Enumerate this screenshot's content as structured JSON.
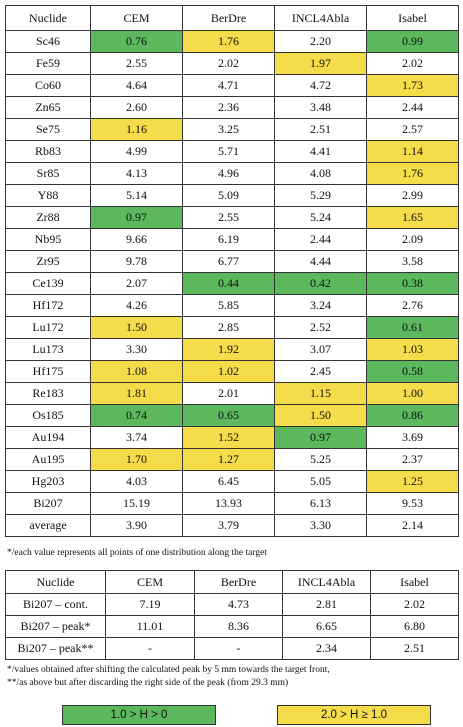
{
  "main_table": {
    "headers": [
      "Nuclide",
      "CEM",
      "BerDre",
      "INCL4Abla",
      "Isabel"
    ],
    "rows": [
      {
        "nuclide": "Sc46",
        "values": [
          "0.76",
          "1.76",
          "2.20",
          "0.99"
        ],
        "colors": [
          "g",
          "y",
          "",
          "g"
        ]
      },
      {
        "nuclide": "Fe59",
        "values": [
          "2.55",
          "2.02",
          "1.97",
          "2.02"
        ],
        "colors": [
          "",
          "",
          "y",
          ""
        ]
      },
      {
        "nuclide": "Co60",
        "values": [
          "4.64",
          "4.71",
          "4.72",
          "1.73"
        ],
        "colors": [
          "",
          "",
          "",
          "y"
        ]
      },
      {
        "nuclide": "Zn65",
        "values": [
          "2.60",
          "2.36",
          "3.48",
          "2.44"
        ],
        "colors": [
          "",
          "",
          "",
          ""
        ]
      },
      {
        "nuclide": "Se75",
        "values": [
          "1.16",
          "3.25",
          "2.51",
          "2.57"
        ],
        "colors": [
          "y",
          "",
          "",
          ""
        ]
      },
      {
        "nuclide": "Rb83",
        "values": [
          "4.99",
          "5.71",
          "4.41",
          "1.14"
        ],
        "colors": [
          "",
          "",
          "",
          "y"
        ]
      },
      {
        "nuclide": "Sr85",
        "values": [
          "4.13",
          "4.96",
          "4.08",
          "1.76"
        ],
        "colors": [
          "",
          "",
          "",
          "y"
        ]
      },
      {
        "nuclide": "Y88",
        "values": [
          "5.14",
          "5.09",
          "5.29",
          "2.99"
        ],
        "colors": [
          "",
          "",
          "",
          ""
        ]
      },
      {
        "nuclide": "Zr88",
        "values": [
          "0.97",
          "2.55",
          "5.24",
          "1.65"
        ],
        "colors": [
          "g",
          "",
          "",
          "y"
        ]
      },
      {
        "nuclide": "Nb95",
        "values": [
          "9.66",
          "6.19",
          "2.44",
          "2.09"
        ],
        "colors": [
          "",
          "",
          "",
          ""
        ]
      },
      {
        "nuclide": "Zr95",
        "values": [
          "9.78",
          "6.77",
          "4.44",
          "3.58"
        ],
        "colors": [
          "",
          "",
          "",
          ""
        ]
      },
      {
        "nuclide": "Ce139",
        "values": [
          "2.07",
          "0.44",
          "0.42",
          "0.38"
        ],
        "colors": [
          "",
          "g",
          "g",
          "g"
        ]
      },
      {
        "nuclide": "Hf172",
        "values": [
          "4.26",
          "5.85",
          "3.24",
          "2.76"
        ],
        "colors": [
          "",
          "",
          "",
          ""
        ]
      },
      {
        "nuclide": "Lu172",
        "values": [
          "1.50",
          "2.85",
          "2.52",
          "0.61"
        ],
        "colors": [
          "y",
          "",
          "",
          "g"
        ]
      },
      {
        "nuclide": "Lu173",
        "values": [
          "3.30",
          "1.92",
          "3.07",
          "1.03"
        ],
        "colors": [
          "",
          "y",
          "",
          "y"
        ]
      },
      {
        "nuclide": "Hf175",
        "values": [
          "1.08",
          "1.02",
          "2.45",
          "0.58"
        ],
        "colors": [
          "y",
          "y",
          "",
          "g"
        ]
      },
      {
        "nuclide": "Re183",
        "values": [
          "1.81",
          "2.01",
          "1.15",
          "1.00"
        ],
        "colors": [
          "y",
          "",
          "y",
          "y"
        ]
      },
      {
        "nuclide": "Os185",
        "values": [
          "0.74",
          "0.65",
          "1.50",
          "0.86"
        ],
        "colors": [
          "g",
          "g",
          "y",
          "g"
        ]
      },
      {
        "nuclide": "Au194",
        "values": [
          "3.74",
          "1.52",
          "0.97",
          "3.69"
        ],
        "colors": [
          "",
          "y",
          "g",
          ""
        ]
      },
      {
        "nuclide": "Au195",
        "values": [
          "1.70",
          "1.27",
          "5.25",
          "2.37"
        ],
        "colors": [
          "y",
          "y",
          "",
          ""
        ]
      },
      {
        "nuclide": "Hg203",
        "values": [
          "4.03",
          "6.45",
          "5.05",
          "1.25"
        ],
        "colors": [
          "",
          "",
          "",
          "y"
        ]
      },
      {
        "nuclide": "Bi207",
        "values": [
          "15.19",
          "13.93",
          "6.13",
          "9.53"
        ],
        "colors": [
          "",
          "",
          "",
          ""
        ]
      },
      {
        "nuclide": "average",
        "values": [
          "3.90",
          "3.79",
          "3.30",
          "2.14"
        ],
        "colors": [
          "",
          "",
          "",
          ""
        ]
      }
    ]
  },
  "note1": "*/each value represents all points of one distribution along the target",
  "sub_table": {
    "headers": [
      "Nuclide",
      "CEM",
      "BerDre",
      "INCL4Abla",
      "Isabel"
    ],
    "rows": [
      {
        "nuclide": "Bi207 – cont.",
        "values": [
          "7.19",
          "4.73",
          "2.81",
          "2.02"
        ]
      },
      {
        "nuclide": "Bi207 – peak*",
        "values": [
          "11.01",
          "8.36",
          "6.65",
          "6.80"
        ]
      },
      {
        "nuclide": "Bi207 – peak**",
        "values": [
          "-",
          "-",
          "2.34",
          "2.51"
        ]
      }
    ]
  },
  "notes2": [
    "*/values obtained after shifting the calculated peak by 5 mm towards the target front,",
    "**/as above but after discarding the right side of the peak (from 29.3 mm)"
  ],
  "legend": {
    "green_label": "1.0 > H > 0",
    "yellow_label": "2.0 > H ≥ 1.0",
    "green_color": "#5cb85c",
    "yellow_color": "#f5dc4a"
  }
}
